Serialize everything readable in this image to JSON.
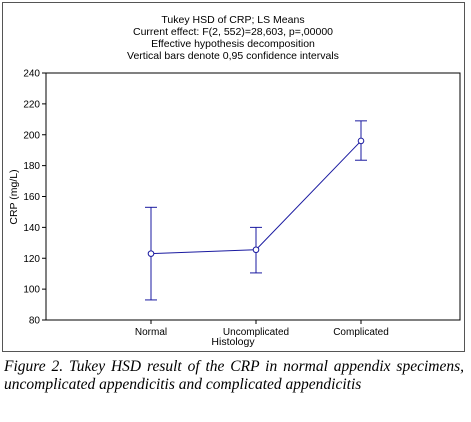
{
  "header": {
    "title": "Tukey HSD of CRP; LS Means",
    "effect": "Current effect: F(2, 552)=28,603, p=,00000",
    "decomposition": "Effective hypothesis decomposition",
    "bars_note": "Vertical bars denote 0,95 confidence intervals"
  },
  "colors": {
    "series": "#1a1aa0",
    "grid": "#a0a0a0"
  },
  "chart_data": {
    "type": "line",
    "title": "Tukey HSD of CRP; LS Means",
    "xlabel": "Histology",
    "ylabel": "CRP (mg/L)",
    "categories": [
      "Normal",
      "Uncomplicated",
      "Complicated"
    ],
    "values": [
      123,
      125.5,
      196
    ],
    "ci_lower": [
      93,
      110.5,
      183.5
    ],
    "ci_upper": [
      153,
      140,
      209
    ],
    "ylim": [
      80,
      240
    ],
    "yticks": [
      "80",
      "100",
      "120",
      "140",
      "160",
      "180",
      "200",
      "220",
      "240"
    ],
    "grid": false
  },
  "caption": "Figure 2. Tukey HSD result of the CRP in normal appendix specimens, uncomplicated appendicitis and complicated appendicitis"
}
